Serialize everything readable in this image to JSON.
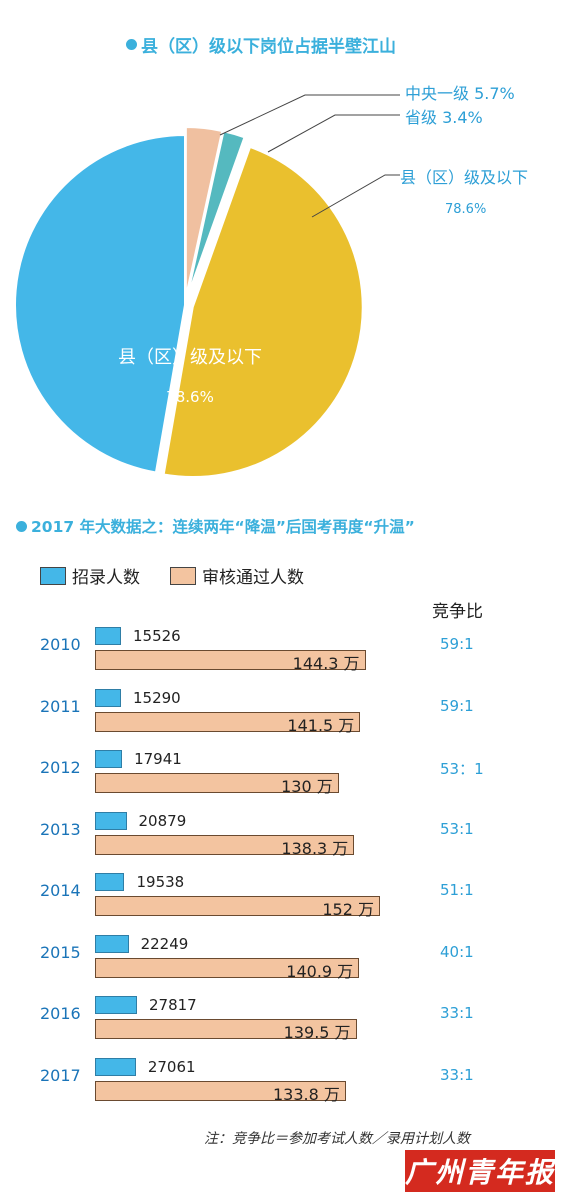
{
  "pie_section": {
    "title": "县（区）级以下岗位占据半壁江山",
    "annotations": {
      "central": "中央一级  5.7%",
      "provincial": "省级  3.4%",
      "county_label": "县（区）级及以下",
      "county_pct": "78.6%"
    },
    "inner_label": "县（区）级及以下",
    "inner_pct": "78.6%"
  },
  "bar_section": {
    "title": "2017 年大数据之：连续两年“降温”后国考再度“升温”",
    "legend_recruit": "招录人数",
    "legend_applicants": "审核通过人数",
    "ratio_header": "竞争比",
    "note": "注：竞争比＝参加考试人数／录用计划人数"
  },
  "logo_text": "广州青年报",
  "chart_data": [
    {
      "type": "pie",
      "title": "县（区）级以下岗位占据半壁江山",
      "slices": [
        {
          "label": "县（区）级及以下",
          "value": 78.6,
          "color": "#44b7e8"
        },
        {
          "label": "中央一级",
          "value": 5.7,
          "color": "#f0c0a0"
        },
        {
          "label": "省级",
          "value": 3.4,
          "color": "#55b9bf"
        },
        {
          "label": "县（区）级及以下",
          "value": 78.6,
          "color": "#eac02e"
        }
      ]
    },
    {
      "type": "bar",
      "title": "2017 年大数据之：连续两年“降温”后国考再度“升温”",
      "categories": [
        "2010",
        "2011",
        "2012",
        "2013",
        "2014",
        "2015",
        "2016",
        "2017"
      ],
      "series": [
        {
          "name": "招录人数",
          "values": [
            15526,
            15290,
            17941,
            20879,
            19538,
            22249,
            27817,
            27061
          ],
          "color": "#44b7e8"
        },
        {
          "name": "审核通过人数",
          "values": [
            144.3,
            141.5,
            130,
            138.3,
            152,
            140.9,
            139.5,
            133.8
          ],
          "color": "#f3c4a0",
          "unit": "万"
        }
      ],
      "ratios": [
        "59:1",
        "59:1",
        "53：1",
        "53:1",
        "51:1",
        "40:1",
        "33:1",
        "33:1"
      ]
    }
  ]
}
